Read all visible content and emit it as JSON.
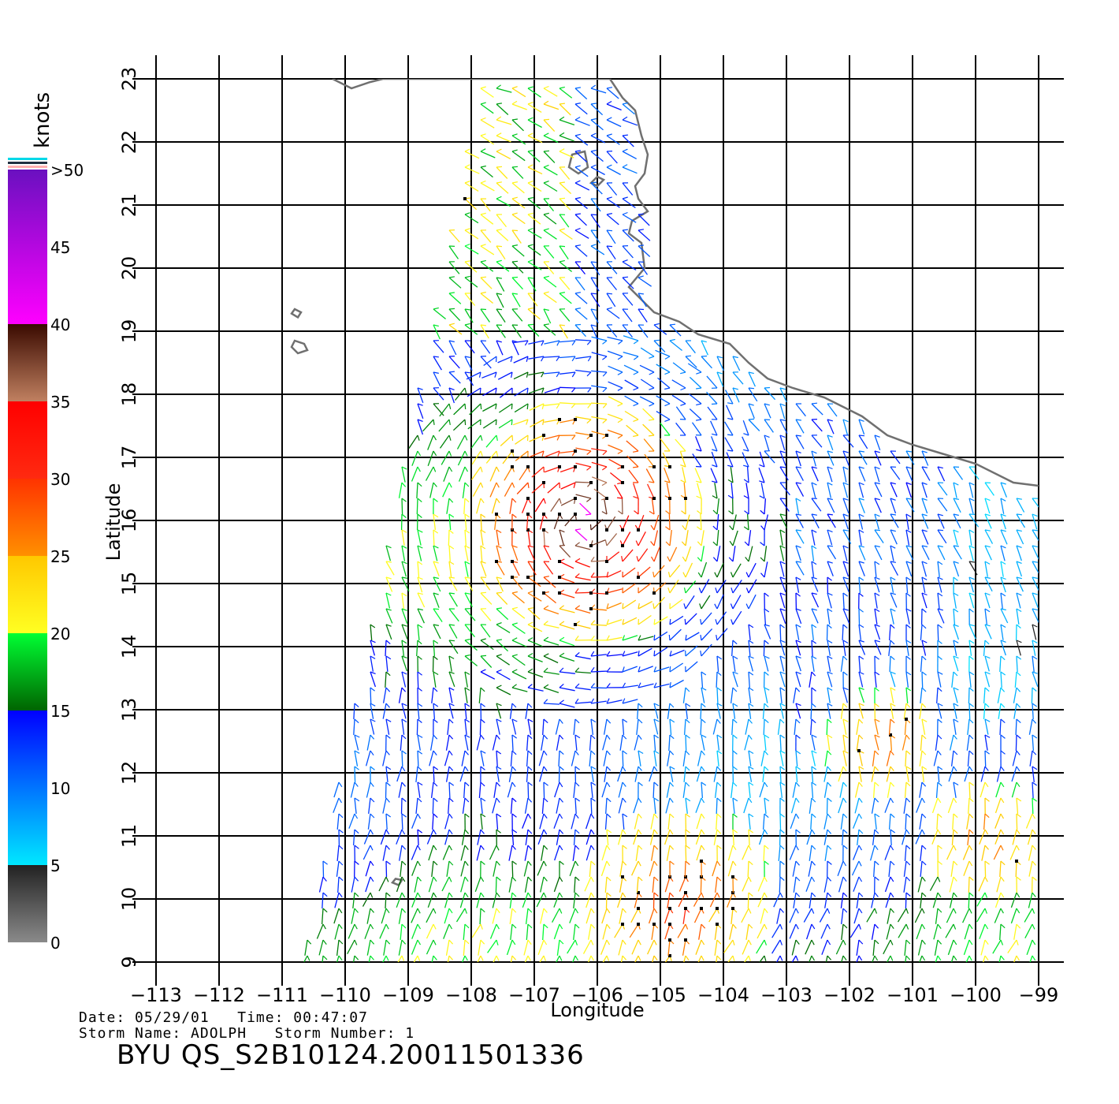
{
  "colorbar": {
    "unit_label": "knots",
    "tick_labels": [
      "0",
      "5",
      "10",
      "15",
      "20",
      "25",
      "30",
      "35",
      "40",
      "45",
      ">50"
    ],
    "stops": [
      {
        "knots": 0,
        "color": "#8a8a8a"
      },
      {
        "knots": 5,
        "color": "#222222"
      },
      {
        "knots": 5,
        "color": "#00e8ff"
      },
      {
        "knots": 15,
        "color": "#0000ff"
      },
      {
        "knots": 15,
        "color": "#006400"
      },
      {
        "knots": 20,
        "color": "#00ff33"
      },
      {
        "knots": 20,
        "color": "#ffff22"
      },
      {
        "knots": 25,
        "color": "#ffc800"
      },
      {
        "knots": 25,
        "color": "#ff9000"
      },
      {
        "knots": 30,
        "color": "#ff3300"
      },
      {
        "knots": 30,
        "color": "#ff2a10"
      },
      {
        "knots": 35,
        "color": "#ff0000"
      },
      {
        "knots": 35,
        "color": "#c08060"
      },
      {
        "knots": 40,
        "color": "#3a0a00"
      },
      {
        "knots": 40,
        "color": "#ff00ff"
      },
      {
        "knots": 50,
        "color": "#6a10c0"
      }
    ]
  },
  "map": {
    "xlabel": "Longitude",
    "ylabel": "Latitude",
    "lon_range": [
      -113,
      -99
    ],
    "lat_range": [
      9,
      23
    ],
    "lon_ticks": [
      "−113",
      "−112",
      "−111",
      "−110",
      "−109",
      "−108",
      "−107",
      "−106",
      "−105",
      "−104",
      "−103",
      "−102",
      "−101",
      "−100",
      "−99"
    ],
    "lat_ticks": [
      "9",
      "10",
      "11",
      "12",
      "13",
      "14",
      "15",
      "16",
      "17",
      "18",
      "19",
      "20",
      "21",
      "22",
      "23"
    ],
    "grid": true,
    "coastline_color": "#707070",
    "coastline": [
      [
        -110.2,
        23.0
      ],
      [
        -110.0,
        22.9
      ],
      [
        -109.9,
        22.85
      ],
      [
        -109.6,
        22.95
      ],
      [
        -109.4,
        23.0
      ],
      [
        -105.8,
        23.0
      ],
      [
        -105.6,
        22.7
      ],
      [
        -105.4,
        22.5
      ],
      [
        -105.3,
        22.1
      ],
      [
        -105.2,
        21.8
      ],
      [
        -105.25,
        21.5
      ],
      [
        -105.4,
        21.3
      ],
      [
        -105.35,
        21.1
      ],
      [
        -105.2,
        20.9
      ],
      [
        -105.45,
        20.75
      ],
      [
        -105.5,
        20.55
      ],
      [
        -105.3,
        20.4
      ],
      [
        -105.25,
        20.0
      ],
      [
        -105.5,
        19.7
      ],
      [
        -105.1,
        19.3
      ],
      [
        -104.7,
        19.15
      ],
      [
        -104.4,
        18.95
      ],
      [
        -103.9,
        18.8
      ],
      [
        -103.6,
        18.5
      ],
      [
        -103.3,
        18.25
      ],
      [
        -102.9,
        18.1
      ],
      [
        -102.4,
        17.95
      ],
      [
        -101.8,
        17.65
      ],
      [
        -101.4,
        17.35
      ],
      [
        -101.0,
        17.2
      ],
      [
        -100.5,
        17.05
      ],
      [
        -100.0,
        16.9
      ],
      [
        -99.6,
        16.7
      ],
      [
        -99.4,
        16.6
      ],
      [
        -99.0,
        16.55
      ]
    ],
    "islands": [
      [
        [
          -106.4,
          21.8
        ],
        [
          -106.2,
          21.85
        ],
        [
          -106.15,
          21.6
        ],
        [
          -106.3,
          21.5
        ],
        [
          -106.45,
          21.6
        ]
      ],
      [
        [
          -106.0,
          21.45
        ],
        [
          -105.9,
          21.4
        ],
        [
          -106.0,
          21.3
        ],
        [
          -106.1,
          21.35
        ]
      ],
      [
        [
          -110.8,
          18.85
        ],
        [
          -110.65,
          18.8
        ],
        [
          -110.6,
          18.7
        ],
        [
          -110.75,
          18.65
        ],
        [
          -110.85,
          18.75
        ]
      ],
      [
        [
          -110.8,
          19.35
        ],
        [
          -110.7,
          19.3
        ],
        [
          -110.75,
          19.22
        ],
        [
          -110.85,
          19.28
        ]
      ],
      [
        [
          -109.2,
          10.32
        ],
        [
          -109.1,
          10.3
        ],
        [
          -109.15,
          10.22
        ],
        [
          -109.25,
          10.26
        ]
      ]
    ],
    "swath": [
      [
        -107.9,
        23.05
      ],
      [
        -99.0,
        23.05
      ],
      [
        -99.0,
        9.0
      ],
      [
        -110.7,
        9.0
      ]
    ],
    "wind_regions": [
      {
        "center": [
          -106.2,
          16.0
        ],
        "radius": 2.0,
        "peak_knots": 42
      },
      {
        "center": [
          -104.7,
          10.0
        ],
        "radius": 1.6,
        "peak_knots": 30
      },
      {
        "center": [
          -101.5,
          12.6
        ],
        "radius": 0.9,
        "peak_knots": 28
      },
      {
        "center": [
          -99.8,
          11.0
        ],
        "radius": 1.0,
        "peak_knots": 27
      }
    ]
  },
  "footer": {
    "date_line": "Date: 05/29/01   Time: 00:47:07",
    "storm_line": "Storm Name: ADOLPH   Storm Number: 1",
    "file_id": "BYU QS_S2B10124.20011501336"
  }
}
